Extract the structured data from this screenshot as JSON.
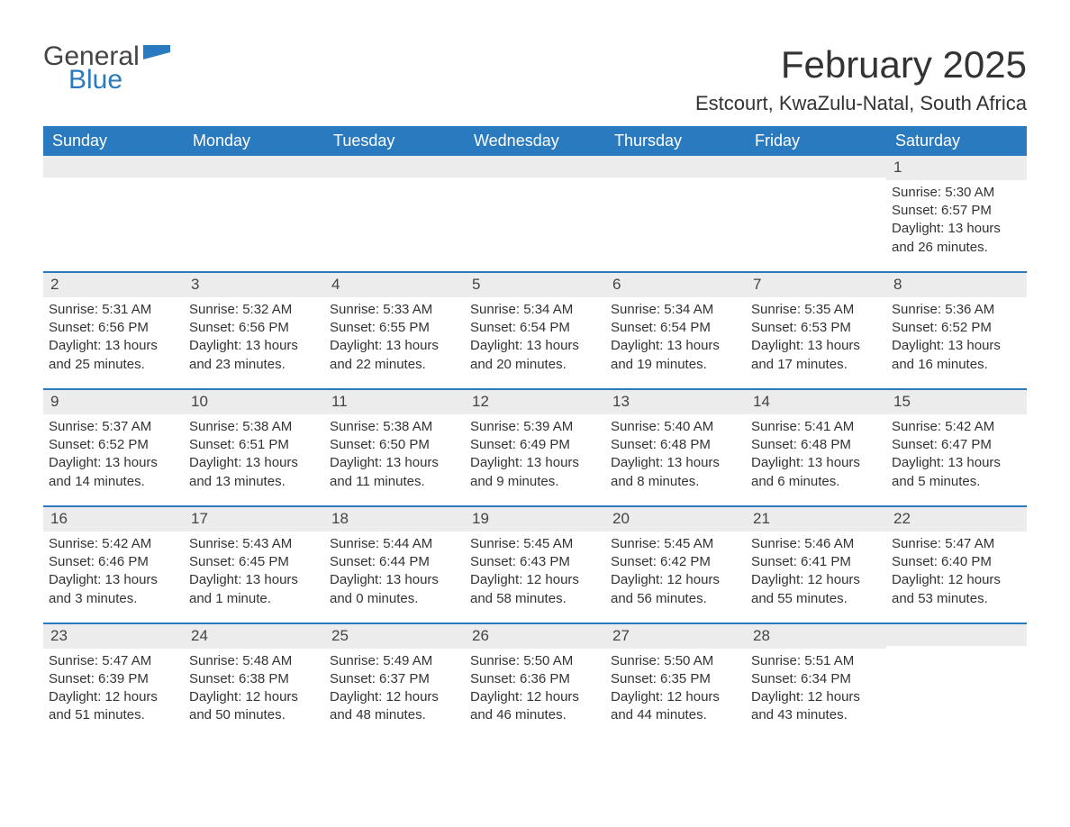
{
  "brand": {
    "general": "General",
    "blue": "Blue",
    "mark_color": "#2a7ac0"
  },
  "title": "February 2025",
  "subtitle": "Estcourt, KwaZulu-Natal, South Africa",
  "header_bg": "#2a7ac0",
  "header_fg": "#ffffff",
  "daynum_bg": "#ececec",
  "rule_color": "#2a7ac0",
  "text_color": "#333333",
  "background_color": "#ffffff",
  "font_family": "Arial",
  "title_fontsize": 42,
  "subtitle_fontsize": 22,
  "dayhead_fontsize": 18,
  "body_fontsize": 15,
  "day_names": [
    "Sunday",
    "Monday",
    "Tuesday",
    "Wednesday",
    "Thursday",
    "Friday",
    "Saturday"
  ],
  "weeks": [
    [
      null,
      null,
      null,
      null,
      null,
      null,
      {
        "n": "1",
        "sr": "Sunrise: 5:30 AM",
        "ss": "Sunset: 6:57 PM",
        "d1": "Daylight: 13 hours",
        "d2": "and 26 minutes."
      }
    ],
    [
      {
        "n": "2",
        "sr": "Sunrise: 5:31 AM",
        "ss": "Sunset: 6:56 PM",
        "d1": "Daylight: 13 hours",
        "d2": "and 25 minutes."
      },
      {
        "n": "3",
        "sr": "Sunrise: 5:32 AM",
        "ss": "Sunset: 6:56 PM",
        "d1": "Daylight: 13 hours",
        "d2": "and 23 minutes."
      },
      {
        "n": "4",
        "sr": "Sunrise: 5:33 AM",
        "ss": "Sunset: 6:55 PM",
        "d1": "Daylight: 13 hours",
        "d2": "and 22 minutes."
      },
      {
        "n": "5",
        "sr": "Sunrise: 5:34 AM",
        "ss": "Sunset: 6:54 PM",
        "d1": "Daylight: 13 hours",
        "d2": "and 20 minutes."
      },
      {
        "n": "6",
        "sr": "Sunrise: 5:34 AM",
        "ss": "Sunset: 6:54 PM",
        "d1": "Daylight: 13 hours",
        "d2": "and 19 minutes."
      },
      {
        "n": "7",
        "sr": "Sunrise: 5:35 AM",
        "ss": "Sunset: 6:53 PM",
        "d1": "Daylight: 13 hours",
        "d2": "and 17 minutes."
      },
      {
        "n": "8",
        "sr": "Sunrise: 5:36 AM",
        "ss": "Sunset: 6:52 PM",
        "d1": "Daylight: 13 hours",
        "d2": "and 16 minutes."
      }
    ],
    [
      {
        "n": "9",
        "sr": "Sunrise: 5:37 AM",
        "ss": "Sunset: 6:52 PM",
        "d1": "Daylight: 13 hours",
        "d2": "and 14 minutes."
      },
      {
        "n": "10",
        "sr": "Sunrise: 5:38 AM",
        "ss": "Sunset: 6:51 PM",
        "d1": "Daylight: 13 hours",
        "d2": "and 13 minutes."
      },
      {
        "n": "11",
        "sr": "Sunrise: 5:38 AM",
        "ss": "Sunset: 6:50 PM",
        "d1": "Daylight: 13 hours",
        "d2": "and 11 minutes."
      },
      {
        "n": "12",
        "sr": "Sunrise: 5:39 AM",
        "ss": "Sunset: 6:49 PM",
        "d1": "Daylight: 13 hours",
        "d2": "and 9 minutes."
      },
      {
        "n": "13",
        "sr": "Sunrise: 5:40 AM",
        "ss": "Sunset: 6:48 PM",
        "d1": "Daylight: 13 hours",
        "d2": "and 8 minutes."
      },
      {
        "n": "14",
        "sr": "Sunrise: 5:41 AM",
        "ss": "Sunset: 6:48 PM",
        "d1": "Daylight: 13 hours",
        "d2": "and 6 minutes."
      },
      {
        "n": "15",
        "sr": "Sunrise: 5:42 AM",
        "ss": "Sunset: 6:47 PM",
        "d1": "Daylight: 13 hours",
        "d2": "and 5 minutes."
      }
    ],
    [
      {
        "n": "16",
        "sr": "Sunrise: 5:42 AM",
        "ss": "Sunset: 6:46 PM",
        "d1": "Daylight: 13 hours",
        "d2": "and 3 minutes."
      },
      {
        "n": "17",
        "sr": "Sunrise: 5:43 AM",
        "ss": "Sunset: 6:45 PM",
        "d1": "Daylight: 13 hours",
        "d2": "and 1 minute."
      },
      {
        "n": "18",
        "sr": "Sunrise: 5:44 AM",
        "ss": "Sunset: 6:44 PM",
        "d1": "Daylight: 13 hours",
        "d2": "and 0 minutes."
      },
      {
        "n": "19",
        "sr": "Sunrise: 5:45 AM",
        "ss": "Sunset: 6:43 PM",
        "d1": "Daylight: 12 hours",
        "d2": "and 58 minutes."
      },
      {
        "n": "20",
        "sr": "Sunrise: 5:45 AM",
        "ss": "Sunset: 6:42 PM",
        "d1": "Daylight: 12 hours",
        "d2": "and 56 minutes."
      },
      {
        "n": "21",
        "sr": "Sunrise: 5:46 AM",
        "ss": "Sunset: 6:41 PM",
        "d1": "Daylight: 12 hours",
        "d2": "and 55 minutes."
      },
      {
        "n": "22",
        "sr": "Sunrise: 5:47 AM",
        "ss": "Sunset: 6:40 PM",
        "d1": "Daylight: 12 hours",
        "d2": "and 53 minutes."
      }
    ],
    [
      {
        "n": "23",
        "sr": "Sunrise: 5:47 AM",
        "ss": "Sunset: 6:39 PM",
        "d1": "Daylight: 12 hours",
        "d2": "and 51 minutes."
      },
      {
        "n": "24",
        "sr": "Sunrise: 5:48 AM",
        "ss": "Sunset: 6:38 PM",
        "d1": "Daylight: 12 hours",
        "d2": "and 50 minutes."
      },
      {
        "n": "25",
        "sr": "Sunrise: 5:49 AM",
        "ss": "Sunset: 6:37 PM",
        "d1": "Daylight: 12 hours",
        "d2": "and 48 minutes."
      },
      {
        "n": "26",
        "sr": "Sunrise: 5:50 AM",
        "ss": "Sunset: 6:36 PM",
        "d1": "Daylight: 12 hours",
        "d2": "and 46 minutes."
      },
      {
        "n": "27",
        "sr": "Sunrise: 5:50 AM",
        "ss": "Sunset: 6:35 PM",
        "d1": "Daylight: 12 hours",
        "d2": "and 44 minutes."
      },
      {
        "n": "28",
        "sr": "Sunrise: 5:51 AM",
        "ss": "Sunset: 6:34 PM",
        "d1": "Daylight: 12 hours",
        "d2": "and 43 minutes."
      },
      null
    ]
  ]
}
